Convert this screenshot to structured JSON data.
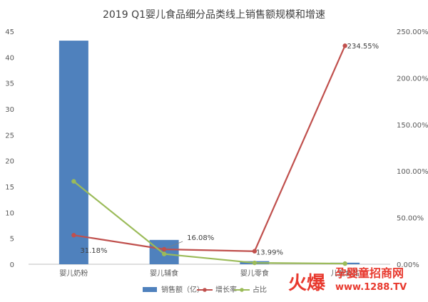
{
  "chart_data": {
    "type": "bar",
    "title": "2019 Q1婴儿食品细分品类线上销售额规模和增速",
    "categories": [
      "婴儿奶粉",
      "婴儿辅食",
      "婴儿零食",
      "儿童食品"
    ],
    "y_left": {
      "ylim": [
        0,
        45
      ],
      "ticks": [
        0,
        5,
        10,
        15,
        20,
        25,
        30,
        35,
        40,
        45
      ]
    },
    "y_right": {
      "ylim": [
        0,
        250
      ],
      "ticks": [
        "0.00%",
        "50.00%",
        "100.00%",
        "150.00%",
        "200.00%",
        "250.00%"
      ]
    },
    "series": [
      {
        "name": "销售额（亿）",
        "kind": "bar",
        "axis": "left",
        "color": "#4f81bd",
        "values": [
          43.2,
          4.7,
          0.6,
          0.3
        ]
      },
      {
        "name": "增长率",
        "kind": "line",
        "axis": "right",
        "color": "#c0504d",
        "values": [
          31.18,
          16.08,
          13.99,
          234.55
        ],
        "labels": [
          "31.18%",
          "16.08%",
          "13.99%",
          "234.55%"
        ]
      },
      {
        "name": "占比",
        "kind": "line",
        "axis": "right",
        "color": "#9bbb59",
        "values": [
          89,
          11,
          1.5,
          0.7
        ]
      }
    ],
    "grid": false,
    "legend_position": "bottom"
  },
  "watermark": {
    "brand": "火爆",
    "site": "孕婴童招商网",
    "url": "www.1288.TV"
  }
}
